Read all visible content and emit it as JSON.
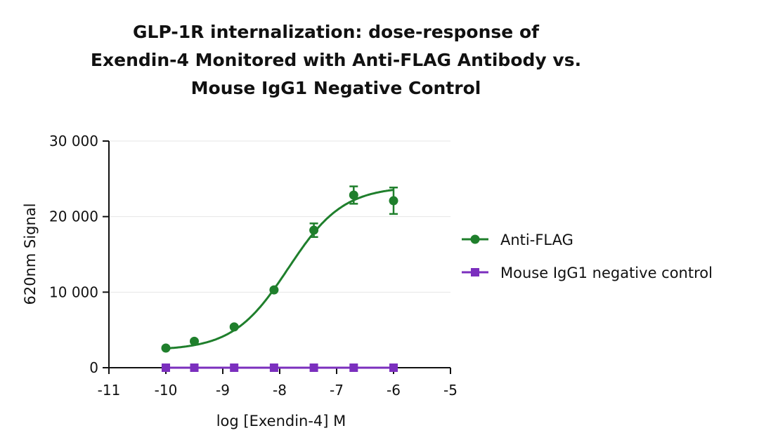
{
  "chart_data": {
    "type": "scatter",
    "title_lines": [
      "GLP-1R internalization: dose-response of",
      "Exendin-4 Monitored with Anti-FLAG Antibody vs.",
      "Mouse IgG1 Negative Control"
    ],
    "xlabel": "log [Exendin-4] M",
    "ylabel": "620nm Signal",
    "xlim": [
      -11,
      -5
    ],
    "ylim": [
      0,
      30000
    ],
    "x_ticks": [
      -11,
      -10,
      -9,
      -8,
      -7,
      -6,
      -5
    ],
    "x_tick_labels": [
      "-11",
      "-10",
      "-9",
      "-8",
      "-7",
      "-6",
      "-5"
    ],
    "y_ticks": [
      0,
      10000,
      20000,
      30000
    ],
    "y_tick_labels": [
      "0",
      "10 000",
      "20 000",
      "30 000"
    ],
    "grid": "horizontal",
    "legend_position": "right",
    "series": [
      {
        "name": "Anti-FLAG",
        "color": "#1f7f2c",
        "marker": "circle",
        "fit": "sigmoidal dose-response curve",
        "x": [
          -10,
          -9.5,
          -8.8,
          -8.1,
          -7.4,
          -6.7,
          -6
        ],
        "y": [
          2600,
          3500,
          5400,
          10300,
          18200,
          22850,
          22100
        ],
        "error": [
          0,
          0,
          0,
          0,
          900,
          1150,
          1750
        ]
      },
      {
        "name": "Mouse IgG1 negative control",
        "color": "#7b2fbe",
        "marker": "square",
        "x": [
          -10,
          -9.5,
          -8.8,
          -8.1,
          -7.4,
          -6.7,
          -6
        ],
        "y": [
          0,
          0,
          0,
          0,
          0,
          0,
          0
        ]
      }
    ]
  }
}
